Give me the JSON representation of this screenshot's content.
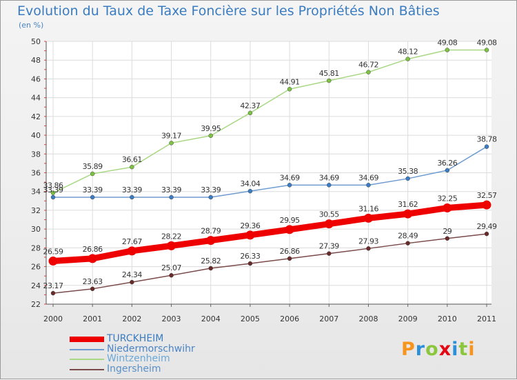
{
  "title": "Evolution du Taux de Taxe Foncière sur les Propriétés Non Bâties",
  "unit_label": "(en %)",
  "logo": {
    "text": "Proxiti",
    "colors": [
      "#f7941d",
      "#2b8fd9",
      "#8cc63f",
      "#e30613",
      "#2b8fd9",
      "#8cc63f",
      "#f7941d"
    ]
  },
  "chart_data": {
    "type": "line",
    "title": "Evolution du Taux de Taxe Foncière sur les Propriétés Non Bâties",
    "ylabel": "(en %)",
    "xlabel": "",
    "x": [
      "2000",
      "2001",
      "2002",
      "2003",
      "2004",
      "2005",
      "2006",
      "2007",
      "2008",
      "2009",
      "2010",
      "2011"
    ],
    "ylim": [
      22,
      50
    ],
    "yticks": [
      22,
      24,
      26,
      28,
      30,
      32,
      34,
      36,
      38,
      40,
      42,
      44,
      46,
      48,
      50
    ],
    "grid": true,
    "legend_position": "bottom-left",
    "series": [
      {
        "name": "TURCKHEIM",
        "color": "#ee0000",
        "marker_color": "#ee0000",
        "emphasis": true,
        "values": [
          26.59,
          26.86,
          27.67,
          28.22,
          28.79,
          29.36,
          29.95,
          30.55,
          31.16,
          31.62,
          32.25,
          32.57
        ],
        "labels": [
          "26.59",
          "26.86",
          "27.67",
          "28.22",
          "28.79",
          "29.36",
          "29.95",
          "30.55",
          "31.16",
          "31.62",
          "32.25",
          "32.57"
        ]
      },
      {
        "name": "Niedermorschwihr",
        "color": "#6e9bd0",
        "marker_color": "#3b7dc4",
        "emphasis": false,
        "values": [
          33.39,
          33.39,
          33.39,
          33.39,
          33.39,
          34.04,
          34.69,
          34.69,
          34.69,
          35.38,
          36.26,
          38.78
        ],
        "labels": [
          "33.39",
          "33.39",
          "33.39",
          "33.39",
          "33.39",
          "34.04",
          "34.69",
          "34.69",
          "34.69",
          "35.38",
          "36.26",
          "38.78"
        ]
      },
      {
        "name": "Wintzenheim",
        "color": "#a8d884",
        "marker_color": "#7dc242",
        "emphasis": false,
        "values": [
          33.86,
          35.89,
          36.61,
          39.17,
          39.95,
          42.37,
          44.91,
          45.81,
          46.72,
          48.12,
          49.08,
          49.08
        ],
        "labels": [
          "33.86",
          "35.89",
          "36.61",
          "39.17",
          "39.95",
          "42.37",
          "44.91",
          "45.81",
          "46.72",
          "48.12",
          "49.08",
          "49.08"
        ]
      },
      {
        "name": "Ingersheim",
        "color": "#7a4a4a",
        "marker_color": "#6a2a2a",
        "emphasis": false,
        "values": [
          23.17,
          23.63,
          24.34,
          25.07,
          25.82,
          26.33,
          26.86,
          27.39,
          27.93,
          28.49,
          29.0,
          29.49
        ],
        "labels": [
          "23.17",
          "23.63",
          "24.34",
          "25.07",
          "25.82",
          "26.33",
          "26.86",
          "27.39",
          "27.93",
          "28.49",
          "29",
          "29.49"
        ]
      }
    ]
  }
}
